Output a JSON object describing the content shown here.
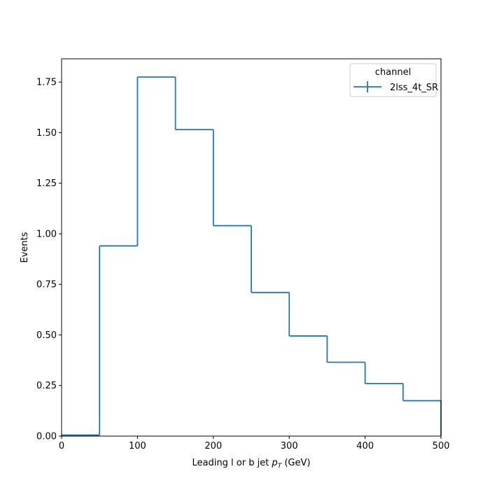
{
  "chart_data": {
    "type": "step-histogram",
    "xlabel_prefix": "Leading l or b jet ",
    "xlabel_var": "p",
    "xlabel_sub": "T",
    "xlabel_suffix": " (GeV)",
    "ylabel": "Events",
    "xlim": [
      0,
      500
    ],
    "ylim": [
      0,
      1.865
    ],
    "xticks": [
      0,
      100,
      200,
      300,
      400,
      500
    ],
    "yticks": [
      0.0,
      0.25,
      0.5,
      0.75,
      1.0,
      1.25,
      1.5,
      1.75
    ],
    "bin_edges": [
      0,
      50,
      100,
      150,
      200,
      250,
      300,
      350,
      400,
      450,
      500
    ],
    "series": [
      {
        "name": "2lss_4t_SR",
        "color": "#1f77b4",
        "values": [
          0.005,
          0.94,
          1.775,
          1.515,
          1.04,
          0.71,
          0.495,
          0.365,
          0.26,
          0.175
        ]
      }
    ],
    "legend": {
      "title": "channel",
      "placement": "top-right"
    },
    "grid": false
  }
}
